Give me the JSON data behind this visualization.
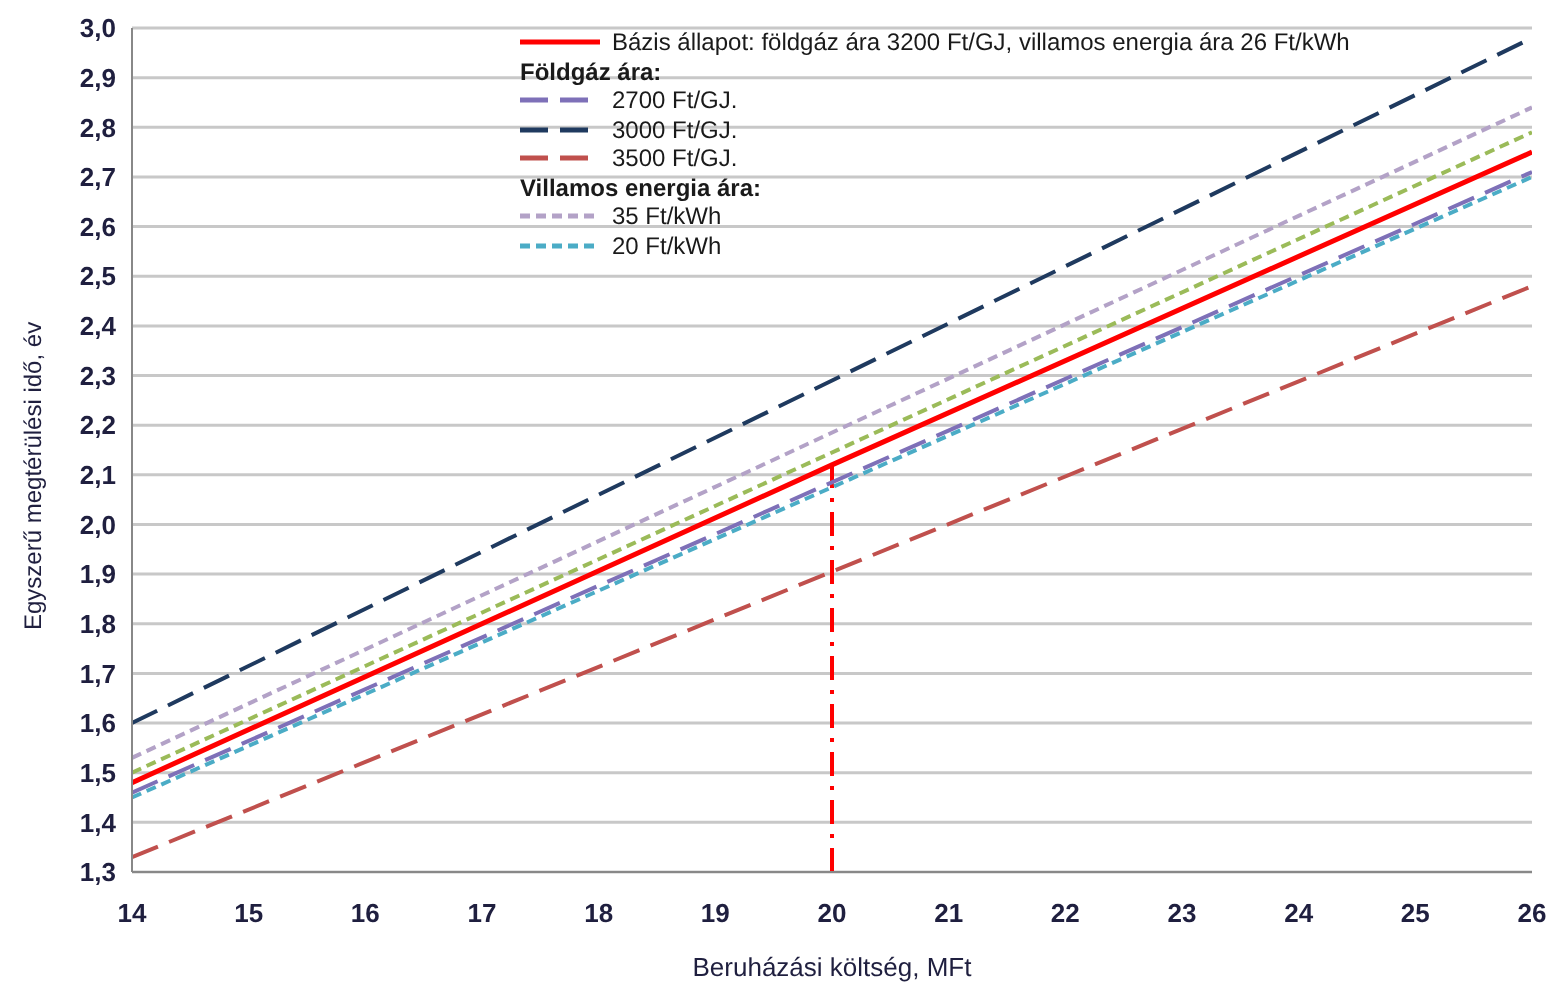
{
  "chart_data": {
    "type": "line",
    "xlabel": "Beruházási költség, MFt",
    "ylabel": "Egyszerű megtérülési idő, év",
    "xlim": [
      14,
      26
    ],
    "xticks": [
      14,
      15,
      16,
      17,
      18,
      19,
      20,
      21,
      22,
      23,
      24,
      25,
      26
    ],
    "ylim": [
      1.3,
      3.0
    ],
    "yticks": [
      {
        "value": 1.3,
        "label": "1,3"
      },
      {
        "value": 1.4,
        "label": "1,4"
      },
      {
        "value": 1.5,
        "label": "1,5"
      },
      {
        "value": 1.6,
        "label": "1,6"
      },
      {
        "value": 1.7,
        "label": "1,7"
      },
      {
        "value": 1.8,
        "label": "1,8"
      },
      {
        "value": 1.9,
        "label": "1,9"
      },
      {
        "value": 2.0,
        "label": "2,0"
      },
      {
        "value": 2.1,
        "label": "2,1"
      },
      {
        "value": 2.2,
        "label": "2,2"
      },
      {
        "value": 2.3,
        "label": "2,3"
      },
      {
        "value": 2.4,
        "label": "2,4"
      },
      {
        "value": 2.5,
        "label": "2,5"
      },
      {
        "value": 2.6,
        "label": "2,6"
      },
      {
        "value": 2.7,
        "label": "2,7"
      },
      {
        "value": 2.8,
        "label": "2,8"
      },
      {
        "value": 2.9,
        "label": "2,9"
      },
      {
        "value": 3.0,
        "label": "3,0"
      }
    ],
    "grid": "y",
    "legend": "top",
    "marker": "none",
    "annotations": [
      "Földgáz ára:",
      "Villamos energia ára:"
    ],
    "ref_lines": [
      {
        "axis": "x",
        "value": 20,
        "color": "#ff0000",
        "line_style": "dashed"
      }
    ],
    "series": [
      {
        "name": "Bázis állapot: földgáz ára 3200 Ft/GJ, villamos energia ára 26 Ft/kWh",
        "color": "#ff0000",
        "line_style": "solid",
        "x": [
          14,
          20,
          26
        ],
        "values": [
          1.48,
          2.12,
          2.75
        ]
      },
      {
        "name": "2700 Ft/GJ.",
        "color": "#7e70b8",
        "line_style": "dashed",
        "x": [
          14,
          26
        ],
        "values": [
          1.46,
          2.71
        ]
      },
      {
        "name": "3000 Ft/GJ.",
        "color": "#1f3a5f",
        "line_style": "dashed",
        "x": [
          14,
          26
        ],
        "values": [
          1.6,
          2.98
        ]
      },
      {
        "name": "3500 Ft/GJ.",
        "color": "#c0504d",
        "line_style": "dashed",
        "x": [
          14,
          26
        ],
        "values": [
          1.33,
          2.48
        ]
      },
      {
        "name": "35 Ft/kWh",
        "color": "#b3a2c7",
        "line_style": "dotted",
        "x": [
          14,
          26
        ],
        "values": [
          1.53,
          2.84
        ]
      },
      {
        "name": "20 Ft/kWh",
        "color": "#4bacc6",
        "line_style": "dotted",
        "x": [
          14,
          26
        ],
        "values": [
          1.45,
          2.7
        ]
      },
      {
        "color": "#9bbb59",
        "line_style": "dotted",
        "x": [
          14,
          26
        ],
        "values": [
          1.5,
          2.79
        ]
      }
    ]
  }
}
